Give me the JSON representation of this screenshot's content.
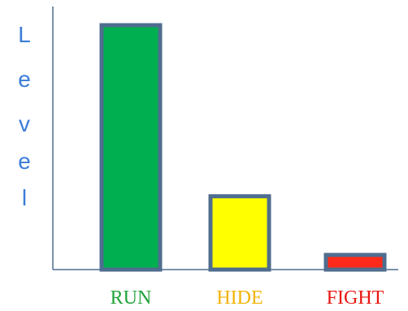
{
  "chart_data": {
    "type": "bar",
    "categories": [
      "RUN",
      "HIDE",
      "FIGHT"
    ],
    "values": [
      100,
      30,
      6
    ],
    "ylabel": "Level",
    "xlabel": "",
    "ylim": [
      0,
      100
    ],
    "grid": false,
    "bar_colors": [
      "#00B050",
      "#FFFF00",
      "#FF2A1A"
    ],
    "bar_outline_color": "#4F6D8F",
    "label_colors": [
      "#22A33A",
      "#F2B200",
      "#E8150F"
    ],
    "ylabel_color": "#3B7DD8",
    "axis_color": "#4F6D8F"
  }
}
